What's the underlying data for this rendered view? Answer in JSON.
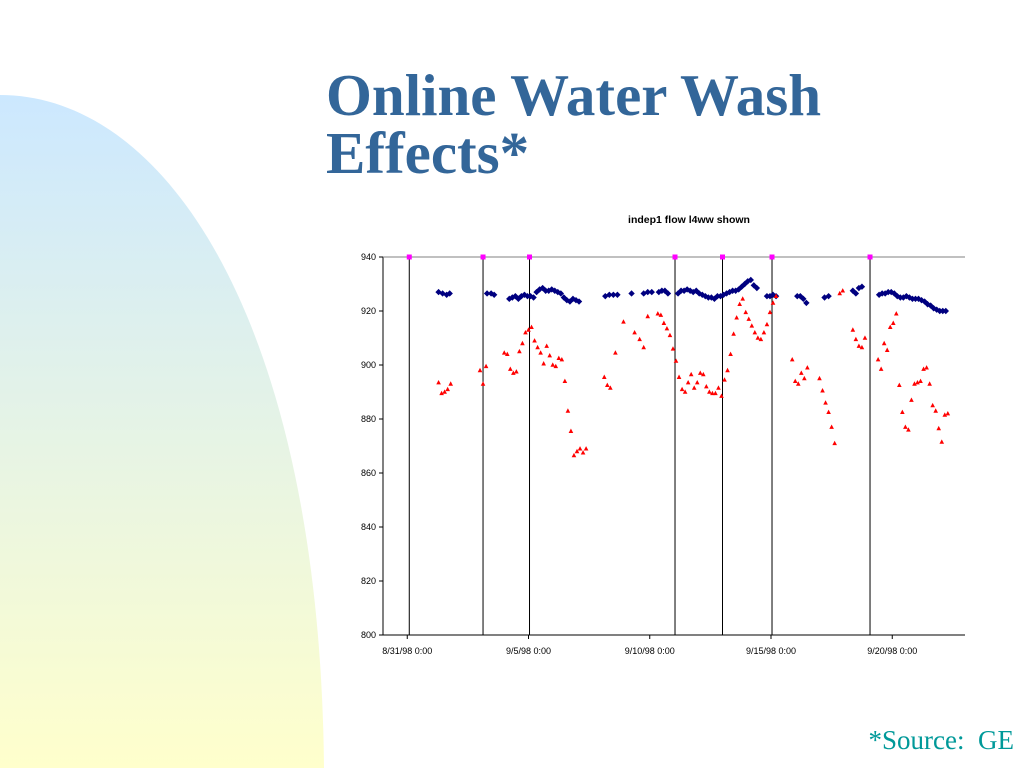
{
  "slide": {
    "title_line1": "Online Water Wash",
    "title_line2": "Effects*",
    "source_note": "*Source:  GE"
  },
  "colors": {
    "title": "#336699",
    "source": "#009999",
    "series_blue": "#000080",
    "series_red": "#FF0000",
    "marker_magenta": "#FF00FF",
    "gradient_top": "#CCE8FF",
    "gradient_bottom": "#FFFFCC"
  },
  "chart_data": {
    "type": "scatter",
    "title": "indep1 flow l4ww shown",
    "xlabel": "",
    "ylabel": "",
    "grid": false,
    "x_axis": {
      "min": "8/30/98 0:00",
      "max": "9/23/98 0:00",
      "tick_labels": [
        "8/31/98 0:00",
        "9/5/98 0:00",
        "9/10/98 0:00",
        "9/15/98 0:00",
        "9/20/98 0:00"
      ]
    },
    "ylim": [
      800,
      940
    ],
    "y_ticks": [
      800,
      820,
      840,
      860,
      880,
      900,
      920,
      940
    ],
    "water_wash_events": [
      "8/31/98 2:00",
      "9/3/98 3:00",
      "9/5/98 1:00",
      "9/11/98 1:00",
      "9/13/98 0:00",
      "9/15/98 1:00",
      "9/19/98 2:00"
    ],
    "series": [
      {
        "marker": "diamond",
        "color": "#000080",
        "points": [
          [
            "9/1/98 7:00",
            927
          ],
          [
            "9/1/98 11:00",
            926.5
          ],
          [
            "9/1/98 15:00",
            926
          ],
          [
            "9/1/98 18:00",
            926.5
          ],
          [
            "9/3/98 7:00",
            926.5
          ],
          [
            "9/3/98 11:00",
            926.5
          ],
          [
            "9/3/98 14:00",
            926
          ],
          [
            "9/4/98 5:00",
            924.5
          ],
          [
            "9/4/98 8:00",
            925
          ],
          [
            "9/4/98 11:00",
            925.5
          ],
          [
            "9/4/98 14:00",
            924.5
          ],
          [
            "9/4/98 17:00",
            925.5
          ],
          [
            "9/4/98 20:00",
            926
          ],
          [
            "9/4/98 23:00",
            925.5
          ],
          [
            "9/5/98 2:00",
            925.5
          ],
          [
            "9/5/98 5:00",
            925
          ],
          [
            "9/5/98 8:00",
            927
          ],
          [
            "9/5/98 11:00",
            928
          ],
          [
            "9/5/98 14:00",
            928.5
          ],
          [
            "9/5/98 17:00",
            927.5
          ],
          [
            "9/5/98 20:00",
            927.5
          ],
          [
            "9/5/98 23:00",
            928
          ],
          [
            "9/6/98 2:00",
            927.5
          ],
          [
            "9/6/98 5:00",
            927
          ],
          [
            "9/6/98 8:00",
            926.5
          ],
          [
            "9/6/98 11:00",
            925
          ],
          [
            "9/6/98 14:00",
            924
          ],
          [
            "9/6/98 17:00",
            923.5
          ],
          [
            "9/6/98 20:00",
            924.5
          ],
          [
            "9/6/98 23:00",
            924
          ],
          [
            "9/7/98 2:00",
            923.5
          ],
          [
            "9/8/98 4:00",
            925.5
          ],
          [
            "9/8/98 8:00",
            926
          ],
          [
            "9/8/98 12:00",
            926
          ],
          [
            "9/8/98 16:00",
            926
          ],
          [
            "9/9/98 6:00",
            926.5
          ],
          [
            "9/9/98 18:00",
            926.5
          ],
          [
            "9/9/98 22:00",
            927
          ],
          [
            "9/10/98 2:00",
            927
          ],
          [
            "9/10/98 9:00",
            927
          ],
          [
            "9/10/98 12:00",
            927.5
          ],
          [
            "9/10/98 15:00",
            927.5
          ],
          [
            "9/10/98 18:00",
            926.5
          ],
          [
            "9/11/98 4:00",
            926.5
          ],
          [
            "9/11/98 7:00",
            927.5
          ],
          [
            "9/11/98 10:00",
            927.5
          ],
          [
            "9/11/98 13:00",
            928
          ],
          [
            "9/11/98 16:00",
            927.5
          ],
          [
            "9/11/98 19:00",
            927
          ],
          [
            "9/11/98 22:00",
            927.5
          ],
          [
            "9/12/98 1:00",
            926.5
          ],
          [
            "9/12/98 4:00",
            926
          ],
          [
            "9/12/98 7:00",
            925.5
          ],
          [
            "9/12/98 10:00",
            925
          ],
          [
            "9/12/98 13:00",
            925
          ],
          [
            "9/12/98 16:00",
            924.5
          ],
          [
            "9/12/98 19:00",
            925.5
          ],
          [
            "9/12/98 22:00",
            925.5
          ],
          [
            "9/13/98 1:00",
            926
          ],
          [
            "9/13/98 4:00",
            926.5
          ],
          [
            "9/13/98 7:00",
            927
          ],
          [
            "9/13/98 10:00",
            927.5
          ],
          [
            "9/13/98 13:00",
            927.5
          ],
          [
            "9/13/98 16:00",
            928
          ],
          [
            "9/13/98 19:00",
            929
          ],
          [
            "9/13/98 22:00",
            930
          ],
          [
            "9/14/98 1:00",
            931
          ],
          [
            "9/14/98 4:00",
            931.5
          ],
          [
            "9/14/98 7:00",
            929.5
          ],
          [
            "9/14/98 10:00",
            928.5
          ],
          [
            "9/14/98 20:00",
            925.5
          ],
          [
            "9/14/98 23:00",
            925.5
          ],
          [
            "9/15/98 2:00",
            926
          ],
          [
            "9/15/98 5:00",
            925.5
          ],
          [
            "9/16/98 2:00",
            925.5
          ],
          [
            "9/16/98 5:00",
            925.5
          ],
          [
            "9/16/98 8:00",
            924.5
          ],
          [
            "9/16/98 11:00",
            923
          ],
          [
            "9/17/98 5:00",
            925
          ],
          [
            "9/17/98 9:00",
            925.5
          ],
          [
            "9/18/98 9:00",
            927.5
          ],
          [
            "9/18/98 12:00",
            926.5
          ],
          [
            "9/18/98 15:00",
            928.5
          ],
          [
            "9/18/98 18:00",
            929
          ],
          [
            "9/19/98 11:00",
            926
          ],
          [
            "9/19/98 14:00",
            926.5
          ],
          [
            "9/19/98 17:00",
            926.5
          ],
          [
            "9/19/98 20:00",
            927
          ],
          [
            "9/19/98 23:00",
            927
          ],
          [
            "9/20/98 2:00",
            926.5
          ],
          [
            "9/20/98 5:00",
            925.5
          ],
          [
            "9/20/98 8:00",
            925
          ],
          [
            "9/20/98 11:00",
            925
          ],
          [
            "9/20/98 14:00",
            925.5
          ],
          [
            "9/20/98 17:00",
            925
          ],
          [
            "9/20/98 20:00",
            924.5
          ],
          [
            "9/20/98 23:00",
            924.5
          ],
          [
            "9/21/98 2:00",
            924.5
          ],
          [
            "9/21/98 5:00",
            924
          ],
          [
            "9/21/98 8:00",
            923.5
          ],
          [
            "9/21/98 11:00",
            922.5
          ],
          [
            "9/21/98 14:00",
            922
          ],
          [
            "9/21/98 17:00",
            921
          ],
          [
            "9/21/98 20:00",
            920.5
          ],
          [
            "9/21/98 23:00",
            920
          ],
          [
            "9/22/98 2:00",
            920
          ],
          [
            "9/22/98 5:00",
            920
          ]
        ]
      },
      {
        "marker": "triangle",
        "color": "#FF0000",
        "points": [
          [
            "9/1/98 7:00",
            893.5
          ],
          [
            "9/1/98 10:00",
            889.5
          ],
          [
            "9/1/98 13:00",
            890
          ],
          [
            "9/1/98 16:00",
            891
          ],
          [
            "9/1/98 19:00",
            893
          ],
          [
            "9/3/98 0:00",
            898
          ],
          [
            "9/3/98 3:00",
            893
          ],
          [
            "9/3/98 6:00",
            899.5
          ],
          [
            "9/4/98 0:00",
            904.5
          ],
          [
            "9/4/98 3:00",
            904
          ],
          [
            "9/4/98 6:00",
            898.5
          ],
          [
            "9/4/98 9:00",
            897
          ],
          [
            "9/4/98 12:00",
            897.5
          ],
          [
            "9/4/98 15:00",
            905
          ],
          [
            "9/4/98 18:00",
            908
          ],
          [
            "9/4/98 21:00",
            912
          ],
          [
            "9/5/98 0:00",
            913
          ],
          [
            "9/5/98 3:00",
            914
          ],
          [
            "9/5/98 6:00",
            909
          ],
          [
            "9/5/98 9:00",
            906.5
          ],
          [
            "9/5/98 12:00",
            904.5
          ],
          [
            "9/5/98 15:00",
            900.5
          ],
          [
            "9/5/98 18:00",
            907
          ],
          [
            "9/5/98 21:00",
            903.5
          ],
          [
            "9/6/98 0:00",
            900
          ],
          [
            "9/6/98 3:00",
            899.5
          ],
          [
            "9/6/98 6:00",
            902.5
          ],
          [
            "9/6/98 9:00",
            902
          ],
          [
            "9/6/98 12:00",
            894
          ],
          [
            "9/6/98 15:00",
            883
          ],
          [
            "9/6/98 18:00",
            875.5
          ],
          [
            "9/6/98 21:00",
            866.5
          ],
          [
            "9/7/98 0:00",
            868
          ],
          [
            "9/7/98 3:00",
            869
          ],
          [
            "9/7/98 6:00",
            867.5
          ],
          [
            "9/7/98 9:00",
            869
          ],
          [
            "9/8/98 3:00",
            895.5
          ],
          [
            "9/8/98 6:00",
            892.5
          ],
          [
            "9/8/98 9:00",
            891.5
          ],
          [
            "9/8/98 14:00",
            904.5
          ],
          [
            "9/8/98 22:00",
            916
          ],
          [
            "9/9/98 9:00",
            912
          ],
          [
            "9/9/98 14:00",
            909.5
          ],
          [
            "9/9/98 18:00",
            906.5
          ],
          [
            "9/9/98 22:00",
            918
          ],
          [
            "9/10/98 8:00",
            919
          ],
          [
            "9/10/98 11:00",
            918.5
          ],
          [
            "9/10/98 14:00",
            915.5
          ],
          [
            "9/10/98 17:00",
            913.5
          ],
          [
            "9/10/98 20:00",
            911
          ],
          [
            "9/10/98 23:00",
            906
          ],
          [
            "9/11/98 2:00",
            901.5
          ],
          [
            "9/11/98 5:00",
            895.5
          ],
          [
            "9/11/98 8:00",
            891
          ],
          [
            "9/11/98 11:00",
            890
          ],
          [
            "9/11/98 14:00",
            893.5
          ],
          [
            "9/11/98 17:00",
            896.5
          ],
          [
            "9/11/98 20:00",
            891.5
          ],
          [
            "9/11/98 23:00",
            893.5
          ],
          [
            "9/12/98 2:00",
            897
          ],
          [
            "9/12/98 5:00",
            896.5
          ],
          [
            "9/12/98 8:00",
            892
          ],
          [
            "9/12/98 11:00",
            890
          ],
          [
            "9/12/98 14:00",
            889.5
          ],
          [
            "9/12/98 17:00",
            889.5
          ],
          [
            "9/12/98 20:00",
            891.5
          ],
          [
            "9/12/98 23:00",
            888.5
          ],
          [
            "9/13/98 2:00",
            894.5
          ],
          [
            "9/13/98 5:00",
            898
          ],
          [
            "9/13/98 8:00",
            904
          ],
          [
            "9/13/98 11:00",
            911.5
          ],
          [
            "9/13/98 14:00",
            917.5
          ],
          [
            "9/13/98 17:00",
            922.5
          ],
          [
            "9/13/98 20:00",
            924.5
          ],
          [
            "9/13/98 23:00",
            919.5
          ],
          [
            "9/14/98 2:00",
            917
          ],
          [
            "9/14/98 5:00",
            914.5
          ],
          [
            "9/14/98 8:00",
            912
          ],
          [
            "9/14/98 11:00",
            910
          ],
          [
            "9/14/98 14:00",
            909.5
          ],
          [
            "9/14/98 17:00",
            912
          ],
          [
            "9/14/98 20:00",
            915
          ],
          [
            "9/14/98 23:00",
            919.5
          ],
          [
            "9/15/98 2:00",
            923
          ],
          [
            "9/15/98 5:00",
            925.5
          ],
          [
            "9/15/98 21:00",
            902
          ],
          [
            "9/16/98 0:00",
            894
          ],
          [
            "9/16/98 3:00",
            893
          ],
          [
            "9/16/98 6:00",
            897
          ],
          [
            "9/16/98 9:00",
            895
          ],
          [
            "9/16/98 12:00",
            899
          ],
          [
            "9/17/98 0:00",
            895
          ],
          [
            "9/17/98 3:00",
            890.5
          ],
          [
            "9/17/98 6:00",
            886
          ],
          [
            "9/17/98 9:00",
            882.5
          ],
          [
            "9/17/98 12:00",
            877
          ],
          [
            "9/17/98 15:00",
            871
          ],
          [
            "9/17/98 20:00",
            926.5
          ],
          [
            "9/17/98 23:00",
            927.5
          ],
          [
            "9/18/98 9:00",
            913
          ],
          [
            "9/18/98 12:00",
            909.5
          ],
          [
            "9/18/98 15:00",
            907
          ],
          [
            "9/18/98 18:00",
            906.5
          ],
          [
            "9/18/98 21:00",
            910
          ],
          [
            "9/19/98 10:00",
            902
          ],
          [
            "9/19/98 13:00",
            898.5
          ],
          [
            "9/19/98 16:00",
            908
          ],
          [
            "9/19/98 19:00",
            905.5
          ],
          [
            "9/19/98 22:00",
            914
          ],
          [
            "9/20/98 1:00",
            915.5
          ],
          [
            "9/20/98 4:00",
            919
          ],
          [
            "9/20/98 7:00",
            892.5
          ],
          [
            "9/20/98 10:00",
            882.5
          ],
          [
            "9/20/98 13:00",
            877
          ],
          [
            "9/20/98 16:00",
            876
          ],
          [
            "9/20/98 19:00",
            887
          ],
          [
            "9/20/98 22:00",
            893
          ],
          [
            "9/21/98 1:00",
            893.5
          ],
          [
            "9/21/98 4:00",
            894
          ],
          [
            "9/21/98 7:00",
            898.5
          ],
          [
            "9/21/98 10:00",
            899
          ],
          [
            "9/21/98 13:00",
            893
          ],
          [
            "9/21/98 16:00",
            885
          ],
          [
            "9/21/98 19:00",
            883
          ],
          [
            "9/21/98 22:00",
            876.5
          ],
          [
            "9/22/98 1:00",
            871.5
          ],
          [
            "9/22/98 4:00",
            881.5
          ],
          [
            "9/22/98 7:00",
            882
          ]
        ]
      }
    ]
  }
}
